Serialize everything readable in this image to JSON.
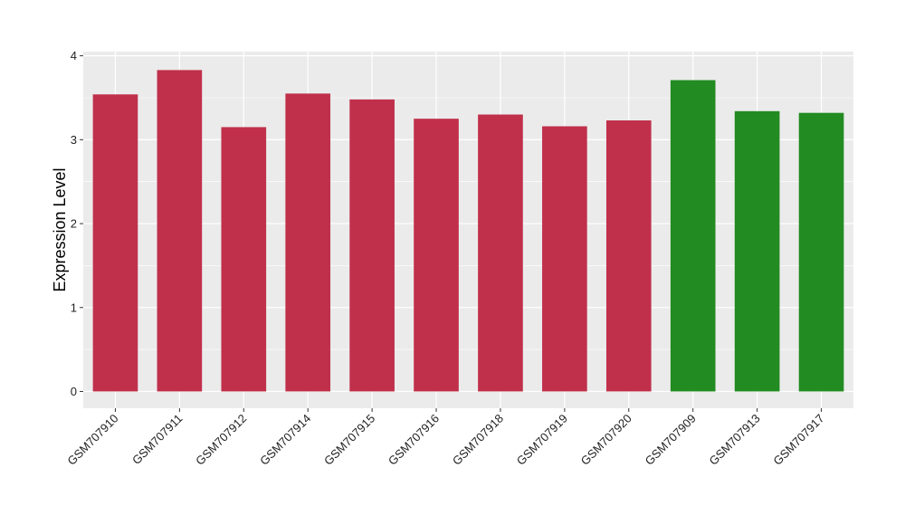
{
  "chart_data": {
    "type": "bar",
    "title": "",
    "xlabel": "",
    "ylabel": "Expression Level",
    "ylim": [
      -0.2,
      4.05
    ],
    "yticks": [
      0,
      1,
      2,
      3,
      4
    ],
    "grid": true,
    "legend": "none",
    "background_color": "#ebebeb",
    "grid_color": "#ffffff",
    "colors": {
      "group_a": "#c0304b",
      "group_b": "#228b22"
    },
    "categories": [
      "GSM707910",
      "GSM707911",
      "GSM707912",
      "GSM707914",
      "GSM707915",
      "GSM707916",
      "GSM707918",
      "GSM707919",
      "GSM707920",
      "GSM707909",
      "GSM707913",
      "GSM707917"
    ],
    "values": [
      3.54,
      3.83,
      3.15,
      3.55,
      3.48,
      3.25,
      3.3,
      3.16,
      3.23,
      3.71,
      3.34,
      3.32
    ],
    "bar_groups": [
      "group_a",
      "group_a",
      "group_a",
      "group_a",
      "group_a",
      "group_a",
      "group_a",
      "group_a",
      "group_a",
      "group_b",
      "group_b",
      "group_b"
    ]
  }
}
